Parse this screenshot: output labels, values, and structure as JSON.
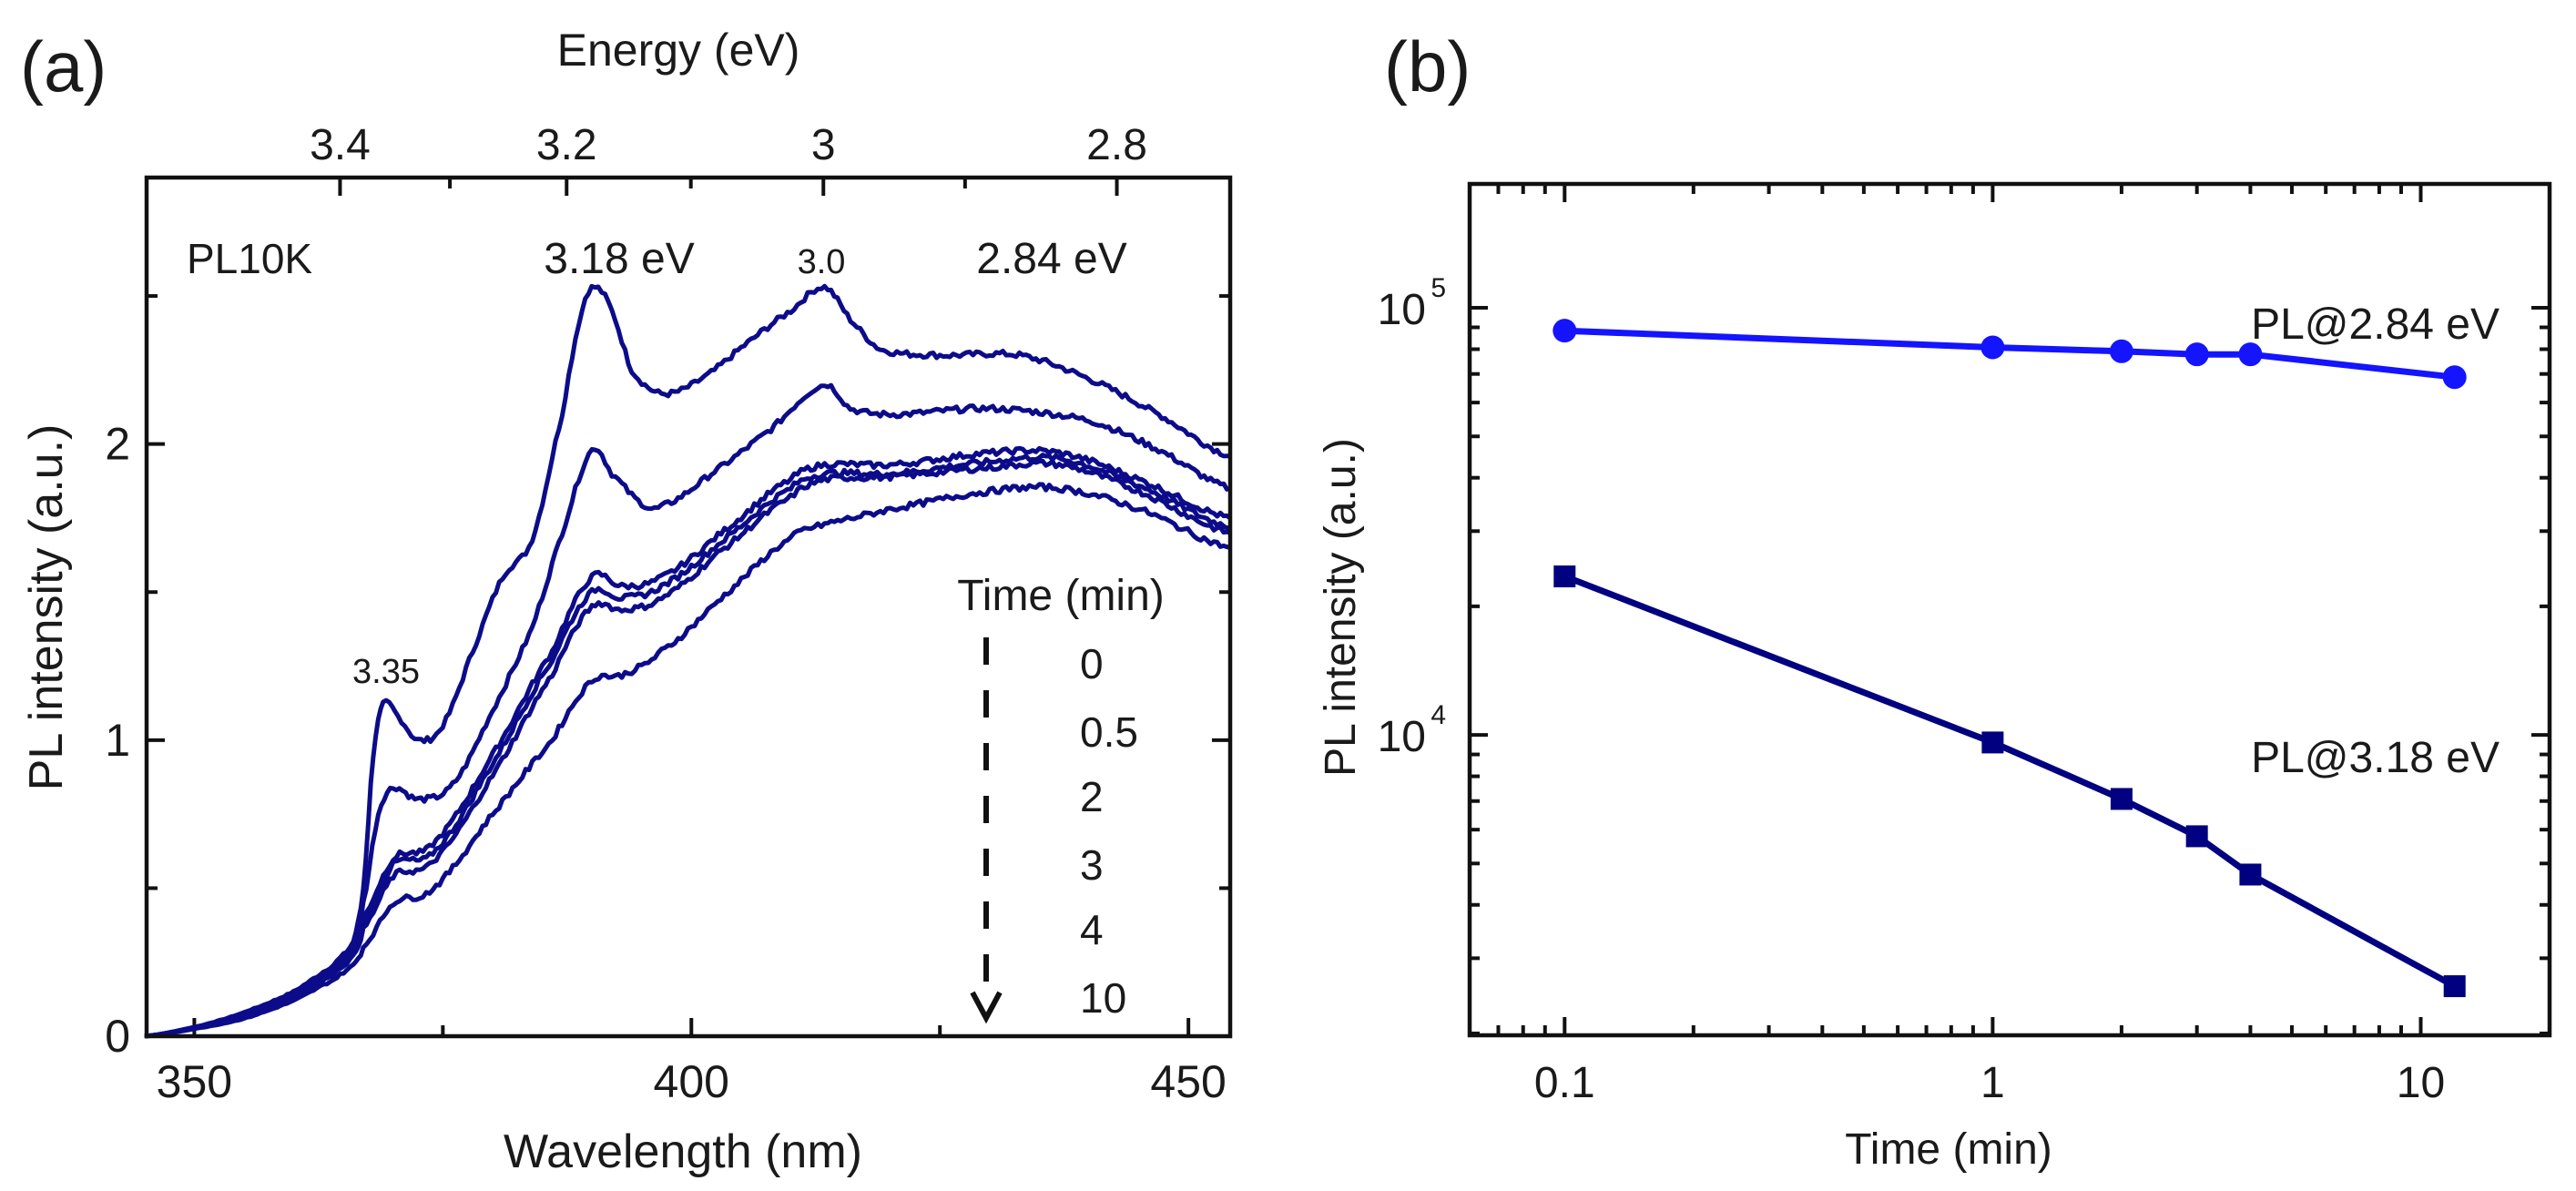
{
  "chart_data": [
    {
      "panel_label": "(a)",
      "type": "line",
      "title": "",
      "xlabel": "Wavelength (nm)",
      "ylabel": "PL intensity (a.u.)",
      "top_xlabel": "Energy (eV)",
      "xlim": [
        345.2,
        454.2
      ],
      "ylim": [
        0,
        2.9
      ],
      "xticks": [
        350,
        400,
        450
      ],
      "xtick_labels": [
        "350",
        "400",
        "450"
      ],
      "yticks": [
        0,
        1,
        2
      ],
      "ytick_labels": [
        "0",
        "1",
        "2"
      ],
      "top_xticks": [
        3.4,
        3.2,
        3.0,
        2.8
      ],
      "top_xtick_labels": [
        "3.4",
        "3.2",
        "3",
        "2.8"
      ],
      "grid": false,
      "color": "#0c0c8a",
      "annotations": {
        "sample": "PL10K",
        "peak_318": "3.18 eV",
        "peak_30": "3.0",
        "peak_284": "2.84 eV",
        "peak_335": "3.35"
      },
      "legend": {
        "title": "Time (min)",
        "entries": [
          "0",
          "0.5",
          "2",
          "3",
          "4",
          "10"
        ],
        "placement": "lower-right"
      },
      "series": [
        {
          "name": "0",
          "x": [
            345,
            350,
            355,
            360,
            364,
            366,
            367,
            368,
            369,
            370.5,
            372.5,
            375,
            378,
            381,
            384,
            387,
            389,
            390.3,
            392,
            394,
            397,
            401,
            406,
            410,
            413.4,
            416,
            419,
            425,
            433,
            440,
            447,
            454.2
          ],
          "y": [
            0,
            0.03,
            0.08,
            0.15,
            0.24,
            0.32,
            0.5,
            0.95,
            1.12,
            1.08,
            1.0,
            1.05,
            1.3,
            1.55,
            1.68,
            2.1,
            2.45,
            2.53,
            2.45,
            2.25,
            2.17,
            2.22,
            2.35,
            2.45,
            2.53,
            2.42,
            2.32,
            2.3,
            2.3,
            2.22,
            2.1,
            1.96
          ]
        },
        {
          "name": "0.5",
          "x": [
            345,
            350,
            355,
            360,
            364,
            366,
            367,
            368.5,
            370,
            372.5,
            376,
            380,
            384,
            387,
            390,
            392,
            395,
            397,
            402,
            408,
            413.4,
            416,
            420,
            430,
            440,
            447,
            454.2
          ],
          "y": [
            0,
            0.03,
            0.08,
            0.15,
            0.23,
            0.3,
            0.45,
            0.75,
            0.84,
            0.8,
            0.85,
            1.1,
            1.38,
            1.7,
            1.98,
            1.9,
            1.8,
            1.79,
            1.9,
            2.05,
            2.2,
            2.12,
            2.1,
            2.12,
            2.08,
            1.98,
            1.85
          ]
        },
        {
          "name": "2",
          "x": [
            345,
            350,
            355,
            360,
            364,
            366,
            367,
            370,
            374,
            380,
            386,
            390,
            393,
            397,
            403,
            410,
            413.4,
            420,
            430,
            437,
            445,
            454.2
          ],
          "y": [
            0,
            0.03,
            0.07,
            0.14,
            0.22,
            0.29,
            0.4,
            0.6,
            0.65,
            0.95,
            1.3,
            1.55,
            1.52,
            1.55,
            1.7,
            1.88,
            1.93,
            1.93,
            1.97,
            1.97,
            1.88,
            1.75
          ]
        },
        {
          "name": "3",
          "x": [
            345,
            350,
            355,
            360,
            364,
            366,
            367,
            370,
            374,
            380,
            386,
            390,
            393,
            397,
            403,
            410,
            413.4,
            420,
            430,
            437,
            445,
            454.2
          ],
          "y": [
            0,
            0.03,
            0.07,
            0.14,
            0.21,
            0.28,
            0.38,
            0.58,
            0.62,
            0.92,
            1.27,
            1.5,
            1.48,
            1.52,
            1.67,
            1.85,
            1.9,
            1.9,
            1.94,
            1.95,
            1.86,
            1.72
          ]
        },
        {
          "name": "4",
          "x": [
            345,
            350,
            355,
            360,
            364,
            366,
            367,
            370,
            374,
            380,
            386,
            390,
            393,
            397,
            403,
            410,
            413.4,
            420,
            430,
            437,
            445,
            454.2
          ],
          "y": [
            0,
            0.03,
            0.07,
            0.13,
            0.21,
            0.27,
            0.36,
            0.54,
            0.59,
            0.88,
            1.22,
            1.45,
            1.44,
            1.48,
            1.64,
            1.82,
            1.88,
            1.89,
            1.92,
            1.93,
            1.84,
            1.7
          ]
        },
        {
          "name": "10",
          "x": [
            345,
            350,
            355,
            360,
            364,
            366,
            367,
            370,
            374,
            380,
            386,
            390,
            393,
            397,
            403,
            410,
            413.4,
            420,
            430,
            437,
            445,
            454.2
          ],
          "y": [
            0,
            0.025,
            0.06,
            0.12,
            0.19,
            0.24,
            0.3,
            0.45,
            0.5,
            0.75,
            1.0,
            1.2,
            1.22,
            1.3,
            1.48,
            1.68,
            1.73,
            1.78,
            1.84,
            1.85,
            1.78,
            1.65
          ]
        }
      ]
    },
    {
      "panel_label": "(b)",
      "type": "line",
      "title": "",
      "xlabel": "Time (min)",
      "ylabel": "PL intensity (a.u.)",
      "xscale": "log",
      "yscale": "log",
      "xlim": [
        0.06,
        20
      ],
      "ylim": [
        1980,
        195000
      ],
      "xticks": [
        0.1,
        1,
        10
      ],
      "xtick_labels": [
        "0.1",
        "1",
        "10"
      ],
      "yticks": [
        10000,
        100000
      ],
      "ytick_labels": [
        {
          "base": "10",
          "exp": "4"
        },
        {
          "base": "10",
          "exp": "5"
        }
      ],
      "grid": false,
      "series": [
        {
          "name": "PL@2.84 eV",
          "marker": "circle",
          "color": "#1414ff",
          "x": [
            0.1,
            1,
            2,
            3,
            4,
            12
          ],
          "y": [
            88400,
            80800,
            79100,
            77800,
            77800,
            68800
          ]
        },
        {
          "name": "PL@3.18 eV",
          "marker": "square",
          "color": "#000080",
          "x": [
            0.1,
            1,
            2,
            3,
            4,
            12
          ],
          "y": [
            23500,
            9600,
            7080,
            5790,
            4710,
            2580
          ]
        }
      ]
    }
  ]
}
